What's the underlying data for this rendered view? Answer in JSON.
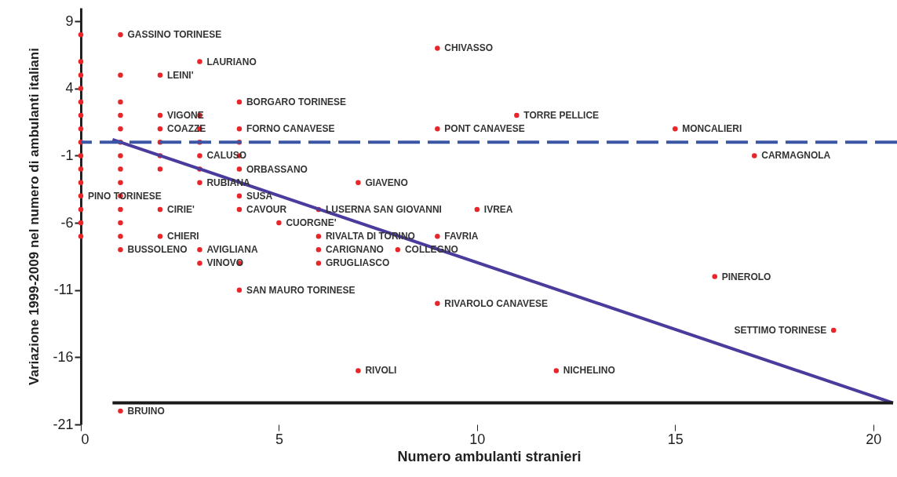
{
  "chart_data": {
    "type": "scatter",
    "xlabel": "Numero ambulanti stranieri",
    "ylabel": "Variazione 1999-2009 nel numero di ambulanti italiani",
    "xlim": [
      0,
      20.6
    ],
    "ylim": [
      -21,
      10
    ],
    "xticks": [
      0,
      5,
      10,
      15,
      20
    ],
    "yticks": [
      9,
      4,
      -1,
      -6,
      -11,
      -16,
      -21
    ],
    "grid": false,
    "series": [
      {
        "color": "#e8262a",
        "marker": "circle",
        "x": [
          0,
          0,
          0,
          0,
          0,
          0,
          0,
          0,
          0,
          0,
          0,
          0,
          0,
          0,
          0,
          1,
          1,
          1,
          1,
          1,
          1,
          1,
          1,
          1,
          1,
          1,
          1,
          1,
          1,
          1,
          2,
          2,
          2,
          2,
          2,
          2,
          2,
          2,
          3,
          3,
          3,
          3,
          3,
          3,
          3,
          3,
          3,
          4,
          4,
          4,
          4,
          4,
          4,
          4,
          4,
          4,
          5,
          6,
          6,
          6,
          6,
          7,
          7,
          8,
          9,
          9,
          9,
          9,
          10,
          11,
          12,
          15,
          16,
          17,
          19
        ],
        "values": [
          8,
          6,
          5,
          4,
          3,
          2,
          1,
          0,
          -1,
          -2,
          -3,
          -4,
          -5,
          -6,
          -7,
          8,
          5,
          3,
          2,
          1,
          0,
          -1,
          -2,
          -3,
          -4,
          -5,
          -6,
          -7,
          -8,
          -20,
          5,
          2,
          1,
          0,
          -1,
          -2,
          -5,
          -7,
          6,
          2,
          1,
          0,
          -1,
          -2,
          -3,
          -8,
          -9,
          3,
          1,
          0,
          -1,
          -2,
          -4,
          -5,
          -9,
          -11,
          -6,
          -5,
          -7,
          -8,
          -9,
          -3,
          -17,
          -8,
          7,
          1,
          -7,
          -12,
          -5,
          2,
          -17,
          1,
          -10,
          -1,
          -14
        ]
      },
      {
        "type": "line",
        "color": "#4a3c9c",
        "x": [
          0.8,
          20.5
        ],
        "values": [
          0.2,
          -19.4
        ]
      },
      {
        "type": "line",
        "color": "#1a1a1a",
        "x": [
          0.8,
          20.5
        ],
        "values": [
          -19.4,
          -19.4
        ]
      }
    ],
    "ref_lines": [
      {
        "axis": "y",
        "value": 0,
        "color": "#3a56a5",
        "line_style": "dashed"
      }
    ],
    "annotations": [
      {
        "text": "GASSINO TORINESE",
        "x": 1,
        "y": 8
      },
      {
        "text": "LAURIANO",
        "x": 3,
        "y": 6
      },
      {
        "text": "LEINI'",
        "x": 2,
        "y": 5
      },
      {
        "text": "BORGARO TORINESE",
        "x": 4,
        "y": 3
      },
      {
        "text": "VIGONE",
        "x": 2,
        "y": 2
      },
      {
        "text": "COAZZE",
        "x": 2,
        "y": 1
      },
      {
        "text": "FORNO CANAVESE",
        "x": 4,
        "y": 1
      },
      {
        "text": "CALUSO",
        "x": 3,
        "y": -1
      },
      {
        "text": "ORBASSANO",
        "x": 4,
        "y": -2
      },
      {
        "text": "RUBIANA",
        "x": 3,
        "y": -3
      },
      {
        "text": "PINO TORINESE",
        "x": 0,
        "y": -4
      },
      {
        "text": "SUSA",
        "x": 4,
        "y": -4
      },
      {
        "text": "CIRIE'",
        "x": 2,
        "y": -5
      },
      {
        "text": "CAVOUR",
        "x": 4,
        "y": -5
      },
      {
        "text": "CHIERI",
        "x": 2,
        "y": -7
      },
      {
        "text": "BUSSOLENO",
        "x": 1,
        "y": -8
      },
      {
        "text": "AVIGLIANA",
        "x": 3,
        "y": -8
      },
      {
        "text": "VINOVO",
        "x": 3,
        "y": -9
      },
      {
        "text": "SAN MAURO TORINESE",
        "x": 4,
        "y": -11
      },
      {
        "text": "BRUINO",
        "x": 1,
        "y": -20
      },
      {
        "text": "CUORGNE'",
        "x": 5,
        "y": -6
      },
      {
        "text": "LUSERNA SAN GIOVANNI",
        "x": 6,
        "y": -5
      },
      {
        "text": "RIVALTA DI TORINO",
        "x": 6,
        "y": -7
      },
      {
        "text": "CARIGNANO",
        "x": 6,
        "y": -8
      },
      {
        "text": "GRUGLIASCO",
        "x": 6,
        "y": -9
      },
      {
        "text": "GIAVENO",
        "x": 7,
        "y": -3
      },
      {
        "text": "RIVOLI",
        "x": 7,
        "y": -17
      },
      {
        "text": "COLLEGNO",
        "x": 8,
        "y": -8
      },
      {
        "text": "CHIVASSO",
        "x": 9,
        "y": 7
      },
      {
        "text": "PONT CANAVESE",
        "x": 9,
        "y": 1
      },
      {
        "text": "FAVRIA",
        "x": 9,
        "y": -7
      },
      {
        "text": "RIVAROLO CANAVESE",
        "x": 9,
        "y": -12
      },
      {
        "text": "IVREA",
        "x": 10,
        "y": -5
      },
      {
        "text": "TORRE PELLICE",
        "x": 11,
        "y": 2
      },
      {
        "text": "NICHELINO",
        "x": 12,
        "y": -17
      },
      {
        "text": "MONCALIERI",
        "x": 15,
        "y": 1
      },
      {
        "text": "PINEROLO",
        "x": 16,
        "y": -10
      },
      {
        "text": "CARMAGNOLA",
        "x": 17,
        "y": -1
      },
      {
        "text": "SETTIMO TORINESE",
        "x": 19,
        "y": -14
      }
    ]
  }
}
